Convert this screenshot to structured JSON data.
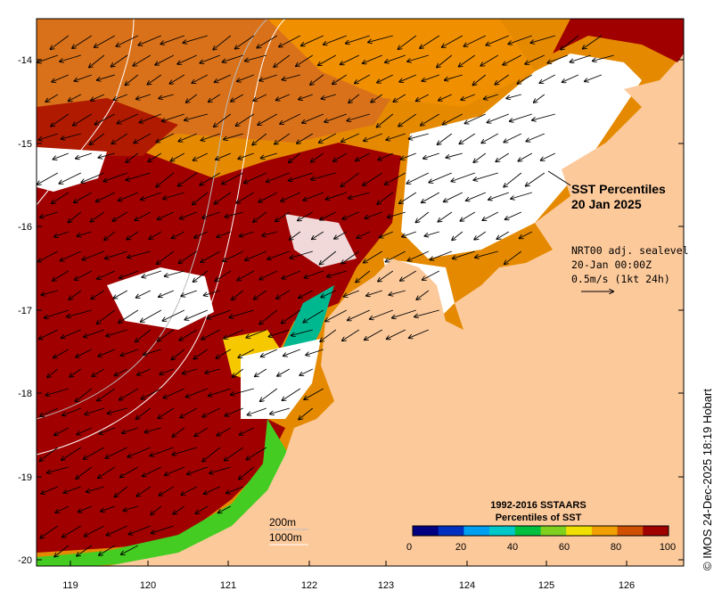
{
  "map": {
    "title_line1": "SST Percentiles",
    "title_line2": "20 Jan 2025",
    "info_line1": "NRT00 adj. sealevel",
    "info_line2": "20-Jan 00:00Z",
    "info_line3": "0.5m/s (1kt 24h)",
    "contours": [
      "200m",
      "1000m"
    ],
    "credit": "© IMOS 24-Dec-2025 18:19 Hobart",
    "longitude_ticks": [
      "119",
      "120",
      "121",
      "122",
      "123",
      "124",
      "125",
      "126"
    ],
    "latitude_ticks": [
      "-14",
      "-15",
      "-16",
      "-17",
      "-18",
      "-19",
      "-20"
    ],
    "colors": {
      "land": "#fcc99b",
      "warmest": "#a00000",
      "hot": "#cc5500",
      "warm": "#e58a00",
      "mild": "#f5c800",
      "green": "#44cc22",
      "teal": "#00c896"
    }
  },
  "colorbar": {
    "title_line1": "1992-2016 SSTAARS",
    "title_line2": "Percentiles of SST",
    "ticks": [
      "0",
      "20",
      "40",
      "60",
      "80",
      "100"
    ],
    "colors": [
      "#000080",
      "#0030c0",
      "#00a0f0",
      "#00c8c8",
      "#00c040",
      "#80d020",
      "#f0e000",
      "#f0a000",
      "#d05000",
      "#a00000"
    ]
  }
}
